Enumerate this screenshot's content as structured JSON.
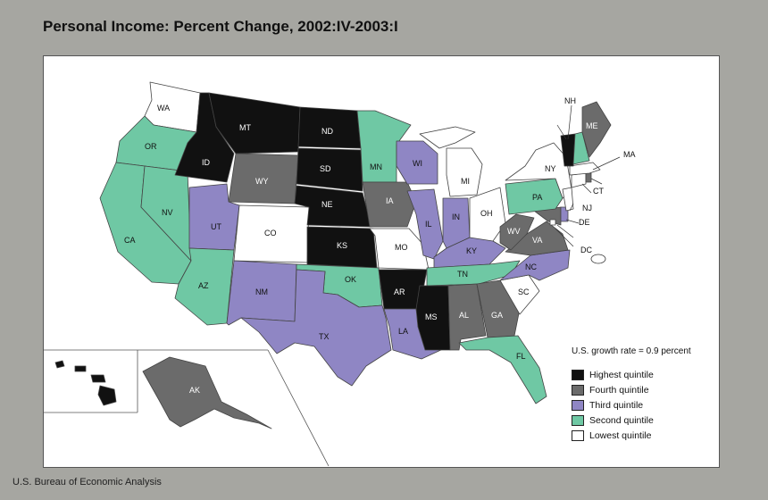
{
  "title": "Personal Income: Percent Change, 2002:IV-2003:I",
  "credit": "U.S. Bureau of Economic Analysis",
  "growth_note": "U.S. growth rate = 0.9 percent",
  "colors": {
    "highest": "#111111",
    "fourth": "#6b6b6b",
    "third": "#8f86c4",
    "second": "#6fc8a4",
    "lowest": "#ffffff"
  },
  "legend": [
    {
      "key": "highest",
      "label": "Highest quintile"
    },
    {
      "key": "fourth",
      "label": "Fourth quintile"
    },
    {
      "key": "third",
      "label": "Third quintile"
    },
    {
      "key": "second",
      "label": "Second quintile"
    },
    {
      "key": "lowest",
      "label": "Lowest quintile"
    }
  ],
  "states": {
    "WA": "lowest",
    "OR": "second",
    "CA": "second",
    "NV": "second",
    "ID": "highest",
    "MT": "highest",
    "WY": "fourth",
    "UT": "third",
    "AZ": "second",
    "CO": "lowest",
    "NM": "third",
    "ND": "highest",
    "SD": "highest",
    "NE": "highest",
    "KS": "highest",
    "OK": "second",
    "TX": "third",
    "MN": "second",
    "IA": "fourth",
    "MO": "lowest",
    "AR": "highest",
    "LA": "third",
    "WI": "third",
    "IL": "third",
    "MI": "lowest",
    "IN": "third",
    "OH": "lowest",
    "KY": "third",
    "TN": "second",
    "MS": "highest",
    "AL": "fourth",
    "GA": "fourth",
    "FL": "second",
    "SC": "lowest",
    "NC": "third",
    "VA": "fourth",
    "WV": "fourth",
    "MD": "fourth",
    "DE": "third",
    "DC": "lowest",
    "PA": "second",
    "NY": "lowest",
    "NJ": "lowest",
    "CT": "lowest",
    "RI": "fourth",
    "MA": "lowest",
    "VT": "highest",
    "NH": "second",
    "ME": "fourth",
    "AK": "fourth",
    "HI": "highest"
  }
}
